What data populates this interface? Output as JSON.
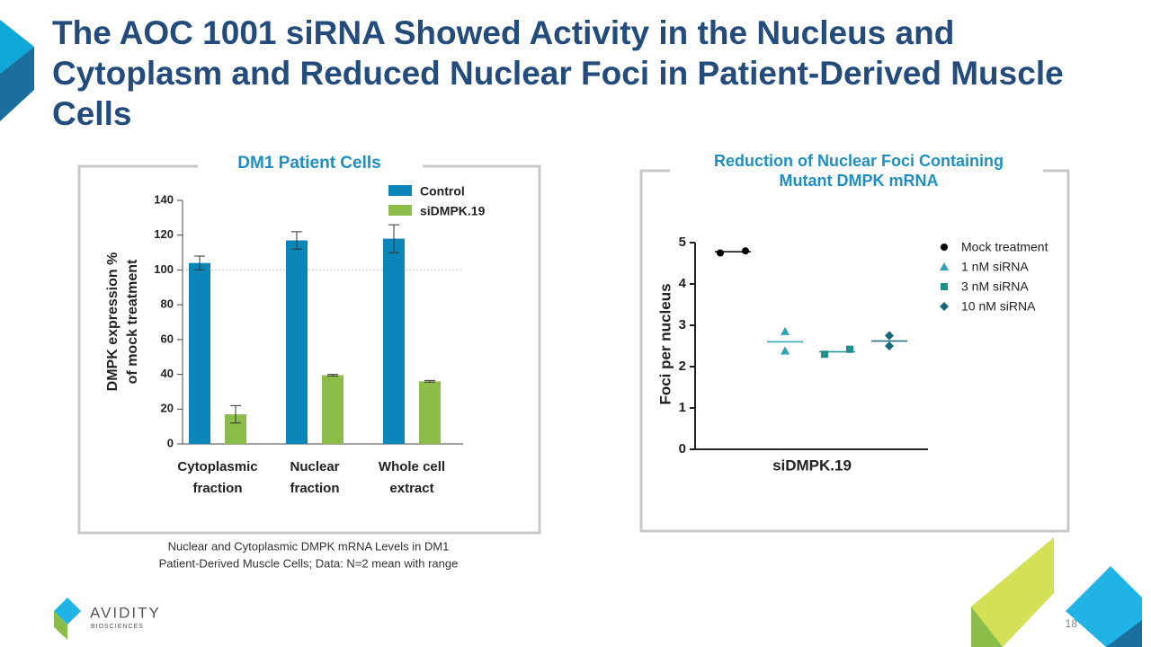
{
  "title": "The AOC 1001 siRNA Showed Activity in the Nucleus and Cytoplasm and Reduced Nuclear Foci in Patient-Derived Muscle Cells",
  "caption": "Nuclear and Cytoplasmic DMPK mRNA Levels in DM1\nPatient-Derived Muscle Cells; Data: N=2 mean with range",
  "logo": {
    "name": "AVIDITY",
    "subtitle": "BIOSCIENCES"
  },
  "page_number": "18",
  "chart_data": [
    {
      "type": "bar",
      "title": "DM1 Patient Cells",
      "y_label": "DMPK expression %\nof mock treatment",
      "categories": [
        "Cytoplasmic\nfraction",
        "Nuclear\nfraction",
        "Whole cell\nextract"
      ],
      "series": [
        {
          "name": "Control",
          "color": "#0a86b8",
          "values": [
            104,
            117,
            118
          ],
          "errors": [
            4,
            5,
            8
          ]
        },
        {
          "name": "siDMPK.19",
          "color": "#8cbd4a",
          "values": [
            17,
            39.5,
            36
          ],
          "errors": [
            5,
            0.5,
            0.5
          ]
        }
      ],
      "ylim": [
        0,
        140
      ],
      "yticks": [
        0,
        20,
        40,
        60,
        80,
        100,
        120,
        140
      ],
      "reference_line": 100,
      "grid": false
    },
    {
      "type": "scatter",
      "title": "Reduction of Nuclear Foci Containing\nMutant DMPK mRNA",
      "y_label": "Foci per nucleus",
      "x_label": "siDMPK.19",
      "series": [
        {
          "name": "Mock treatment",
          "color": "#000000",
          "marker": "circle",
          "values": [
            4.75,
            4.8
          ],
          "mean": 4.78
        },
        {
          "name": "1 nM siRNA",
          "color": "#2ba3b4",
          "marker": "triangle",
          "values": [
            2.85,
            2.38
          ],
          "mean": 2.6
        },
        {
          "name": "3 nM siRNA",
          "color": "#1f8f8c",
          "marker": "square",
          "values": [
            2.3,
            2.42
          ],
          "mean": 2.36
        },
        {
          "name": "10 nM siRNA",
          "color": "#17677e",
          "marker": "diamond",
          "values": [
            2.75,
            2.5
          ],
          "mean": 2.62
        }
      ],
      "ylim": [
        0,
        5
      ],
      "yticks": [
        0,
        1,
        2,
        3,
        4,
        5
      ]
    }
  ]
}
